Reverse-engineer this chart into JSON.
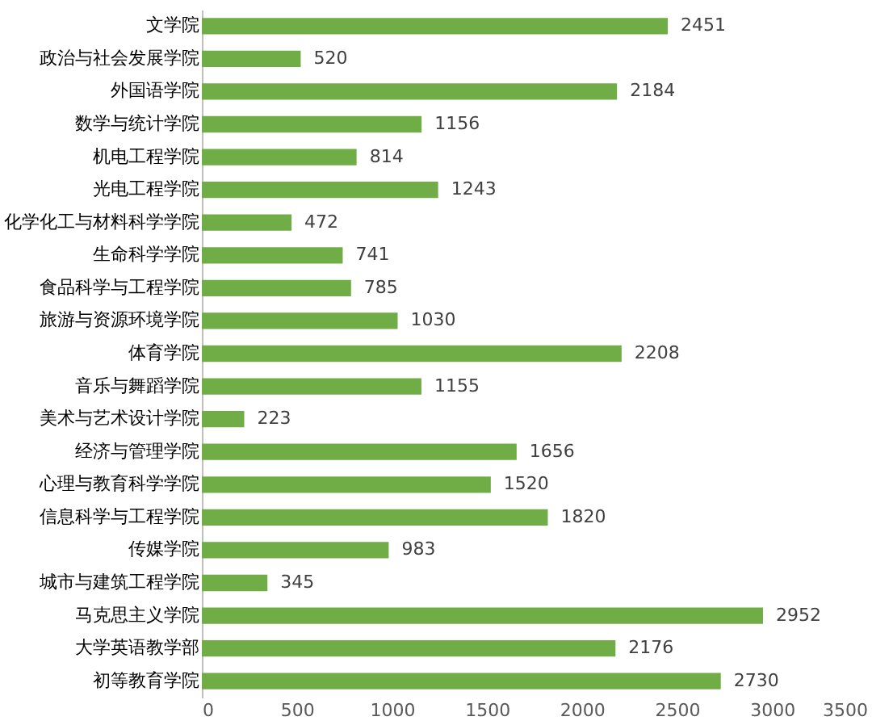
{
  "chart_data": {
    "type": "bar",
    "orientation": "horizontal",
    "categories": [
      "文学院",
      "政治与社会发展学院",
      "外国语学院",
      "数学与统计学院",
      "机电工程学院",
      "光电工程学院",
      "化学化工与材料科学学院",
      "生命科学学院",
      "食品科学与工程学院",
      "旅游与资源环境学院",
      "体育学院",
      "音乐与舞蹈学院",
      "美术与艺术设计学院",
      "经济与管理学院",
      "心理与教育科学学院",
      "信息科学与工程学院",
      "传媒学院",
      "城市与建筑工程学院",
      "马克思主义学院",
      "大学英语教学部",
      "初等教育学院"
    ],
    "values": [
      2451,
      520,
      2184,
      1156,
      814,
      1243,
      472,
      741,
      785,
      1030,
      2208,
      1155,
      223,
      1656,
      1520,
      1820,
      983,
      345,
      2952,
      2176,
      2730
    ],
    "color": "#70ad47",
    "xlim": [
      0,
      3500
    ],
    "xticks": [
      0,
      500,
      1000,
      1500,
      2000,
      2500,
      3000,
      3500
    ],
    "grid": false,
    "data_labels": true
  }
}
